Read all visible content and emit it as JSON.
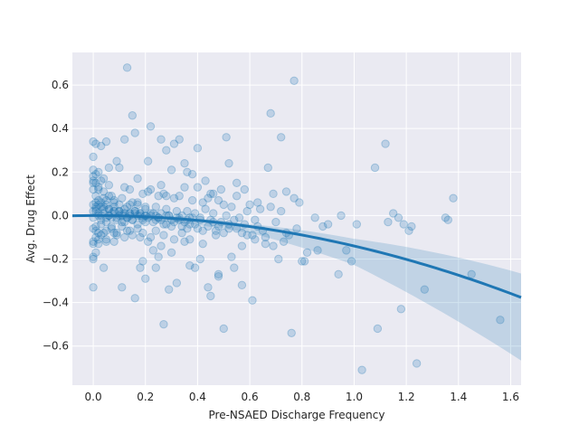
{
  "chart_data": {
    "type": "scatter",
    "title": "",
    "xlabel": "Pre-NSAED Discharge Frequency",
    "ylabel": "Avg. Drug Effect",
    "xlim": [
      -0.08,
      1.64
    ],
    "ylim": [
      -0.78,
      0.75
    ],
    "xticks": [
      "0.0",
      "0.2",
      "0.4",
      "0.6",
      "0.8",
      "1.0",
      "1.2",
      "1.4",
      "1.6"
    ],
    "yticks": [
      "−0.6",
      "−0.4",
      "−0.2",
      "0.0",
      "0.2",
      "0.4",
      "0.6"
    ],
    "xtick_values": [
      0.0,
      0.2,
      0.4,
      0.6,
      0.8,
      1.0,
      1.2,
      1.4,
      1.6
    ],
    "ytick_values": [
      -0.6,
      -0.4,
      -0.2,
      0.0,
      0.2,
      0.4,
      0.6
    ],
    "grid": true,
    "style": "seaborn-darkgrid",
    "colors": {
      "background": "#eaeaf2",
      "grid": "#ffffff",
      "point": "#1f77b4",
      "line": "#1f77b4"
    },
    "points": {
      "x": [
        0.13,
        0.77,
        0.15,
        0.72,
        0.22,
        0.68,
        0.26,
        0.33,
        0.28,
        0.31,
        0.4,
        0.51,
        0.12,
        0.05,
        0.0,
        0.01,
        0.03,
        0.06,
        0.1,
        0.09,
        0.17,
        0.21,
        0.3,
        0.35,
        0.36,
        0.38,
        0.43,
        0.46,
        0.49,
        0.52,
        0.55,
        0.59,
        0.63,
        0.67,
        0.74,
        0.78,
        0.85,
        0.95,
        1.08,
        1.12,
        1.15,
        1.17,
        1.19,
        1.21,
        1.35,
        1.36,
        1.38,
        1.45,
        1.56,
        1.03,
        1.09,
        1.24,
        1.27,
        1.18,
        0.97,
        0.94,
        0.9,
        0.86,
        0.81,
        0.8,
        0.76,
        0.71,
        0.66,
        0.61,
        0.57,
        0.54,
        0.5,
        0.45,
        0.44,
        0.41,
        0.39,
        0.37,
        0.32,
        0.29,
        0.27,
        0.25,
        0.24,
        0.2,
        0.19,
        0.18,
        0.16,
        0.11,
        0.08,
        0.04,
        0.02,
        0.0,
        0.0,
        0.0,
        0.01,
        0.02,
        0.04,
        0.05,
        0.07,
        0.09,
        0.11,
        0.14,
        0.18,
        0.21,
        0.23,
        0.26,
        0.3,
        0.34,
        0.37,
        0.42,
        0.47,
        0.53,
        0.57,
        0.62,
        0.65,
        0.69,
        0.73,
        0.75,
        0.82,
        0.88,
        0.99,
        1.01,
        1.13,
        1.22,
        0.48,
        0.48,
        0.45,
        0.16,
        0.21,
        0.26,
        0.28,
        0.35,
        0.4,
        0.48,
        0.55,
        0.58,
        0.69,
        0.77,
        0.79,
        0.0,
        0.01,
        0.03,
        0.06,
        0.12,
        0.14,
        0.19,
        0.22,
        0.25,
        0.27,
        0.31,
        0.33,
        0.38,
        0.42,
        0.44,
        0.5,
        0.53,
        0.6,
        0.64,
        0.68,
        0.72,
        0.0,
        0.02,
        0.04,
        0.05,
        0.08,
        0.1,
        0.13,
        0.15,
        0.17,
        0.2,
        0.24,
        0.28,
        0.32,
        0.36,
        0.39,
        0.43,
        0.46,
        0.51,
        0.56,
        0.62,
        0.07,
        0.01,
        0.02,
        0.03,
        0.04,
        0.06,
        0.08,
        0.1,
        0.12,
        0.14,
        0.16,
        0.18,
        0.2,
        0.22,
        0.24,
        0.26,
        0.29,
        0.32,
        0.34,
        0.37,
        0.41,
        0.45,
        0.49,
        0.54,
        0.58,
        0.63,
        0.7,
        0.0,
        0.01,
        0.01,
        0.02,
        0.03,
        0.05,
        0.06,
        0.07,
        0.09,
        0.11,
        0.13,
        0.15,
        0.17,
        0.19,
        0.21,
        0.23,
        0.26,
        0.28,
        0.31,
        0.34,
        0.37,
        0.4,
        0.44,
        0.47,
        0.52,
        0.57,
        0.61,
        0.66,
        0.74,
        0.0,
        0.0,
        0.01,
        0.02,
        0.03,
        0.04,
        0.05,
        0.06,
        0.07,
        0.08,
        0.09,
        0.1,
        0.11,
        0.12,
        0.13,
        0.14,
        0.15,
        0.16,
        0.17,
        0.18,
        0.19,
        0.2,
        0.22,
        0.24,
        0.25,
        0.27,
        0.29,
        0.3,
        0.33,
        0.35,
        0.36,
        0.38,
        0.39,
        0.41,
        0.42,
        0.46,
        0.48,
        0.5,
        0.52,
        0.55,
        0.59,
        0.0,
        0.01,
        0.02,
        0.03,
        0.04,
        0.05,
        0.06,
        0.08,
        0.1,
        0.12,
        0.14,
        0.16,
        0.18,
        0.2,
        0.23,
        0.25,
        0.28,
        0.3,
        0.33,
        0.36,
        0.0,
        0.01,
        0.02,
        0.03,
        0.05,
        0.07,
        0.09,
        0.11,
        0.13,
        0.15,
        0.17,
        0.19,
        0.22,
        0.24,
        0.27,
        0.31,
        0.35,
        0.0,
        0.01,
        0.02,
        0.04,
        0.06,
        0.08,
        0.11,
        0.14,
        0.17,
        0.2,
        0.0,
        0.01,
        0.03,
        0.05,
        0.08,
        0.12,
        0.0,
        0.02,
        0.04,
        0.0,
        0.01,
        0.0
      ],
      "y": [
        0.68,
        0.62,
        0.46,
        0.36,
        0.41,
        0.47,
        0.35,
        0.35,
        0.3,
        0.33,
        0.31,
        0.36,
        0.35,
        0.34,
        0.34,
        0.33,
        0.32,
        0.22,
        0.22,
        0.25,
        0.17,
        0.25,
        0.21,
        0.24,
        0.2,
        0.19,
        0.16,
        0.1,
        0.12,
        0.24,
        0.15,
        0.02,
        0.06,
        0.22,
        0.11,
        -0.06,
        -0.01,
        0.0,
        0.22,
        0.33,
        0.01,
        -0.01,
        -0.04,
        -0.07,
        -0.01,
        -0.02,
        0.08,
        -0.27,
        -0.48,
        -0.71,
        -0.52,
        -0.68,
        -0.34,
        -0.43,
        -0.16,
        -0.27,
        -0.04,
        -0.16,
        -0.21,
        -0.21,
        -0.54,
        -0.2,
        -0.13,
        -0.39,
        -0.32,
        -0.24,
        -0.52,
        -0.37,
        -0.33,
        -0.2,
        -0.24,
        -0.23,
        -0.31,
        -0.34,
        -0.5,
        -0.19,
        -0.24,
        -0.29,
        -0.21,
        -0.24,
        -0.38,
        -0.33,
        -0.12,
        -0.24,
        -0.13,
        -0.33,
        -0.2,
        -0.13,
        -0.07,
        -0.11,
        -0.08,
        -0.12,
        -0.05,
        -0.09,
        -0.03,
        -0.07,
        -0.1,
        -0.12,
        -0.16,
        -0.14,
        -0.17,
        -0.08,
        -0.11,
        -0.13,
        -0.09,
        -0.19,
        -0.14,
        -0.11,
        -0.07,
        -0.14,
        -0.12,
        -0.09,
        -0.17,
        -0.05,
        -0.21,
        -0.04,
        -0.03,
        -0.05,
        -0.28,
        -0.27,
        0.1,
        0.38,
        0.11,
        0.14,
        0.09,
        0.13,
        0.13,
        0.07,
        0.09,
        0.12,
        0.1,
        0.08,
        0.06,
        0.21,
        0.19,
        0.16,
        0.14,
        0.13,
        0.12,
        0.1,
        0.12,
        0.09,
        0.1,
        0.08,
        0.09,
        0.07,
        0.06,
        0.08,
        0.05,
        0.04,
        0.05,
        0.03,
        0.04,
        0.02,
        0.15,
        0.12,
        0.08,
        0.07,
        0.06,
        0.05,
        0.04,
        0.06,
        0.05,
        0.03,
        0.04,
        0.03,
        0.02,
        0.02,
        0.01,
        0.03,
        0.01,
        0.0,
        -0.01,
        -0.02,
        0.09,
        0.06,
        0.05,
        0.04,
        0.03,
        0.03,
        0.02,
        0.02,
        0.01,
        0.01,
        0.02,
        0.01,
        0.0,
        0.01,
        0.0,
        0.01,
        0.0,
        -0.01,
        0.0,
        -0.01,
        -0.01,
        -0.02,
        -0.03,
        -0.02,
        -0.04,
        -0.05,
        -0.03,
        0.05,
        0.04,
        0.02,
        0.01,
        0.0,
        -0.01,
        0.0,
        0.01,
        -0.01,
        0.0,
        -0.01,
        -0.02,
        0.0,
        -0.02,
        -0.01,
        -0.03,
        -0.02,
        -0.04,
        -0.03,
        -0.05,
        -0.04,
        -0.06,
        -0.05,
        -0.07,
        -0.06,
        -0.08,
        -0.09,
        -0.1,
        -0.08,
        0.02,
        -0.01,
        0.03,
        0.0,
        -0.02,
        0.01,
        -0.03,
        0.0,
        -0.01,
        0.02,
        -0.02,
        0.0,
        0.01,
        -0.03,
        -0.01,
        0.0,
        -0.02,
        0.01,
        -0.04,
        0.0,
        -0.01,
        -0.03,
        0.0,
        -0.02,
        -0.01,
        -0.04,
        0.0,
        -0.05,
        -0.02,
        -0.03,
        -0.06,
        -0.01,
        -0.04,
        -0.02,
        -0.07,
        -0.03,
        -0.05,
        -0.08,
        -0.04,
        -0.06,
        -0.09,
        0.12,
        0.09,
        0.07,
        0.06,
        0.04,
        0.05,
        0.03,
        0.04,
        0.02,
        0.03,
        0.01,
        0.02,
        0.01,
        0.0,
        0.01,
        -0.01,
        0.0,
        -0.02,
        -0.01,
        -0.02,
        -0.06,
        -0.05,
        -0.08,
        -0.04,
        -0.07,
        -0.06,
        -0.08,
        -0.05,
        -0.07,
        -0.09,
        -0.06,
        -0.08,
        -0.1,
        -0.07,
        -0.09,
        -0.11,
        -0.12,
        0.18,
        0.15,
        0.13,
        0.11,
        0.09,
        0.07,
        0.08,
        0.05,
        0.06,
        0.04,
        -0.12,
        -0.1,
        -0.09,
        -0.11,
        -0.08,
        -0.1,
        0.27,
        0.2,
        0.17,
        -0.19,
        -0.17,
        0.16
      ]
    },
    "fit": {
      "type": "quadratic",
      "x_range": [
        -0.08,
        1.64
      ],
      "coefficients": {
        "a": -0.14,
        "b": 0.0,
        "c": 0.0
      },
      "ci_halfwidth": {
        "at_0": 0.005,
        "at_0.6": 0.02,
        "at_1.0": 0.06,
        "at_1.64": 0.2
      }
    }
  }
}
